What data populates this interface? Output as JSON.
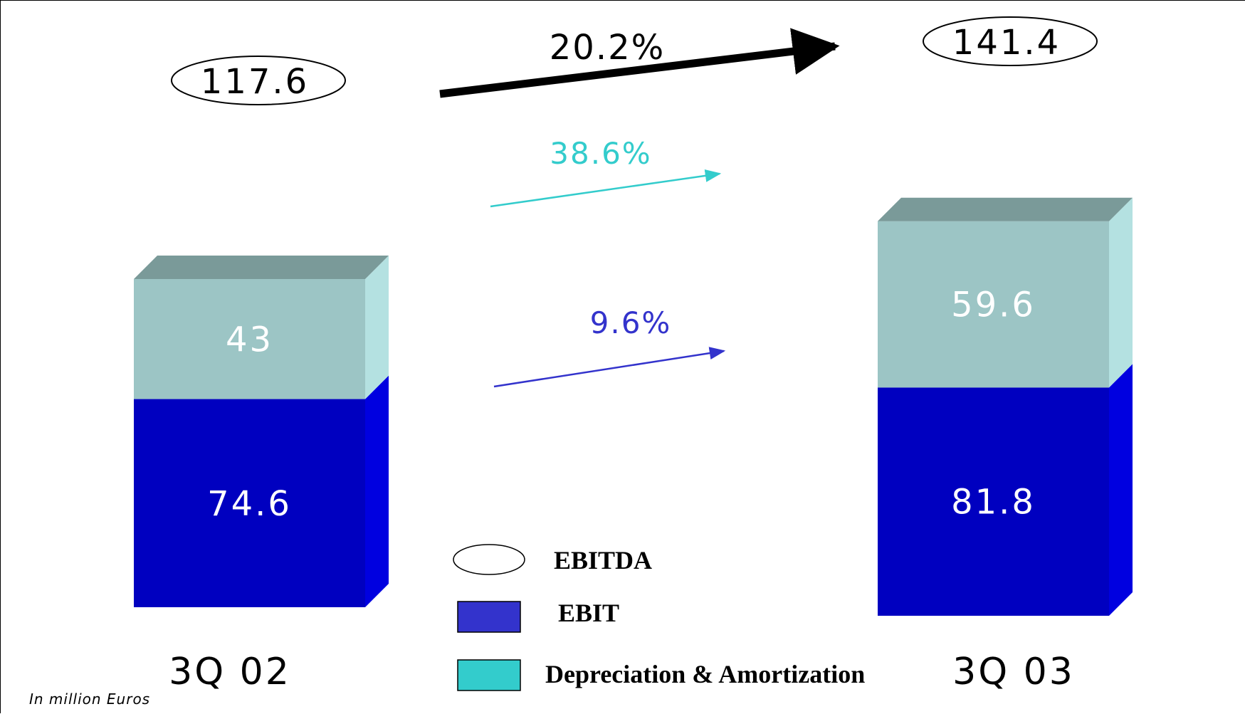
{
  "chart_data": {
    "type": "bar",
    "stacked": true,
    "categories": [
      "3Q 02",
      "3Q 03"
    ],
    "series": [
      {
        "name": "EBIT",
        "values": [
          74.6,
          81.8
        ],
        "value_labels": [
          "74.6",
          "81.8"
        ],
        "color": "#0000c0"
      },
      {
        "name": "Depreciation & Amortization",
        "values": [
          43,
          59.6
        ],
        "value_labels": [
          "43",
          "59.6"
        ],
        "color": "#9cc5c5"
      }
    ],
    "totals": {
      "name": "EBITDA",
      "values": [
        117.6,
        141.4
      ],
      "labels": [
        "117.6",
        "141.4"
      ]
    },
    "growth": [
      {
        "label": "20.2%",
        "color": "#000000"
      },
      {
        "label": "38.6%",
        "color": "#33cccc"
      },
      {
        "label": "9.6%",
        "color": "#3333cc"
      }
    ],
    "legend": [
      {
        "label": "EBITDA",
        "swatch": "ellipse",
        "color": "#ffffff"
      },
      {
        "label": "EBIT",
        "swatch": "rect",
        "color": "#3333cc"
      },
      {
        "label": "Depreciation & Amortization",
        "swatch": "rect",
        "color": "#33cccc"
      }
    ],
    "unit_note": "In million Euros"
  }
}
